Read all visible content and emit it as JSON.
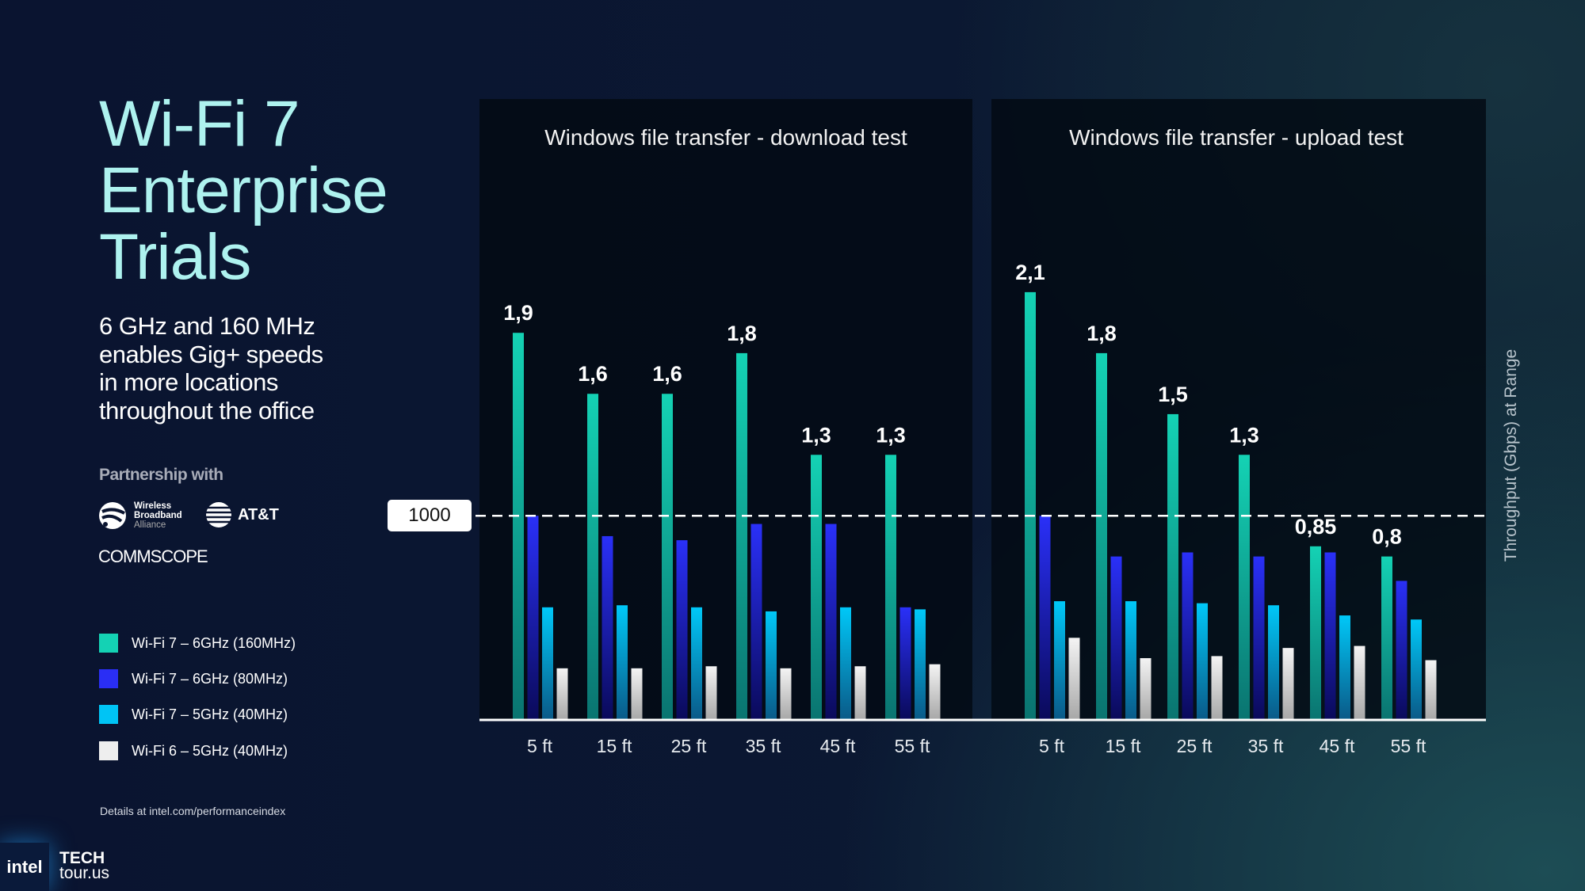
{
  "title_lines": [
    "Wi-Fi 7",
    "Enterprise",
    "Trials"
  ],
  "subtitle_lines": [
    "6 GHz and 160 MHz",
    "enables Gig+ speeds",
    "in more locations",
    "throughout the office"
  ],
  "partnership": {
    "label": "Partnership with",
    "logos": {
      "wba": [
        "Wireless",
        "Broadband",
        "Alliance"
      ],
      "att": "AT&T",
      "commscope": "COMMSCOPE"
    }
  },
  "footnote": "Details at intel.com/performanceindex",
  "branding": {
    "intel": "intel",
    "tech_lines": [
      "TECH",
      "tour.us"
    ]
  },
  "colors": {
    "background": "#0a1430",
    "teal": "#14d2b4",
    "blue": "#2a2ef5",
    "cyan": "#00c4f5",
    "white": "#eeeeee"
  },
  "chart_data": {
    "type": "bar",
    "ylabel": "Throughput (Gbps) at Range",
    "ylim": [
      0,
      3.05
    ],
    "grid": false,
    "legend_placement": "left",
    "reference_line": {
      "value": 1.0,
      "label": "1000"
    },
    "series_names": [
      "Wi-Fi 7 – 6GHz (160MHz)",
      "Wi-Fi 7 – 6GHz (80MHz)",
      "Wi-Fi 7 – 5GHz (40MHz)",
      "Wi-Fi 6 – 5GHz (40MHz)"
    ],
    "series_colors": [
      "#14d2b4",
      "#2a2ef5",
      "#00c4f5",
      "#eeeeee"
    ],
    "charts": [
      {
        "title": "Windows file transfer - download test",
        "categories": [
          "5 ft",
          "15 ft",
          "25 ft",
          "35 ft",
          "45 ft",
          "55 ft"
        ],
        "series": [
          {
            "values": [
              1.9,
              1.6,
              1.6,
              1.8,
              1.3,
              1.3
            ],
            "labels": [
              "1,9",
              "1,6",
              "1,6",
              "1,8",
              "1,3",
              "1,3"
            ]
          },
          {
            "values": [
              1.0,
              0.9,
              0.88,
              0.96,
              0.96,
              0.55
            ]
          },
          {
            "values": [
              0.55,
              0.56,
              0.55,
              0.53,
              0.55,
              0.54
            ]
          },
          {
            "values": [
              0.25,
              0.25,
              0.26,
              0.25,
              0.26,
              0.27
            ]
          }
        ]
      },
      {
        "title": "Windows file transfer - upload test",
        "categories": [
          "5 ft",
          "15 ft",
          "25 ft",
          "35 ft",
          "45 ft",
          "55 ft"
        ],
        "series": [
          {
            "values": [
              2.1,
              1.8,
              1.5,
              1.3,
              0.85,
              0.8
            ],
            "labels": [
              "2,1",
              "1,8",
              "1,5",
              "1,3",
              "0,85",
              "0,8"
            ]
          },
          {
            "values": [
              1.0,
              0.8,
              0.82,
              0.8,
              0.82,
              0.68
            ]
          },
          {
            "values": [
              0.58,
              0.58,
              0.57,
              0.56,
              0.51,
              0.49
            ]
          },
          {
            "values": [
              0.4,
              0.3,
              0.31,
              0.35,
              0.36,
              0.29
            ]
          }
        ]
      }
    ]
  }
}
